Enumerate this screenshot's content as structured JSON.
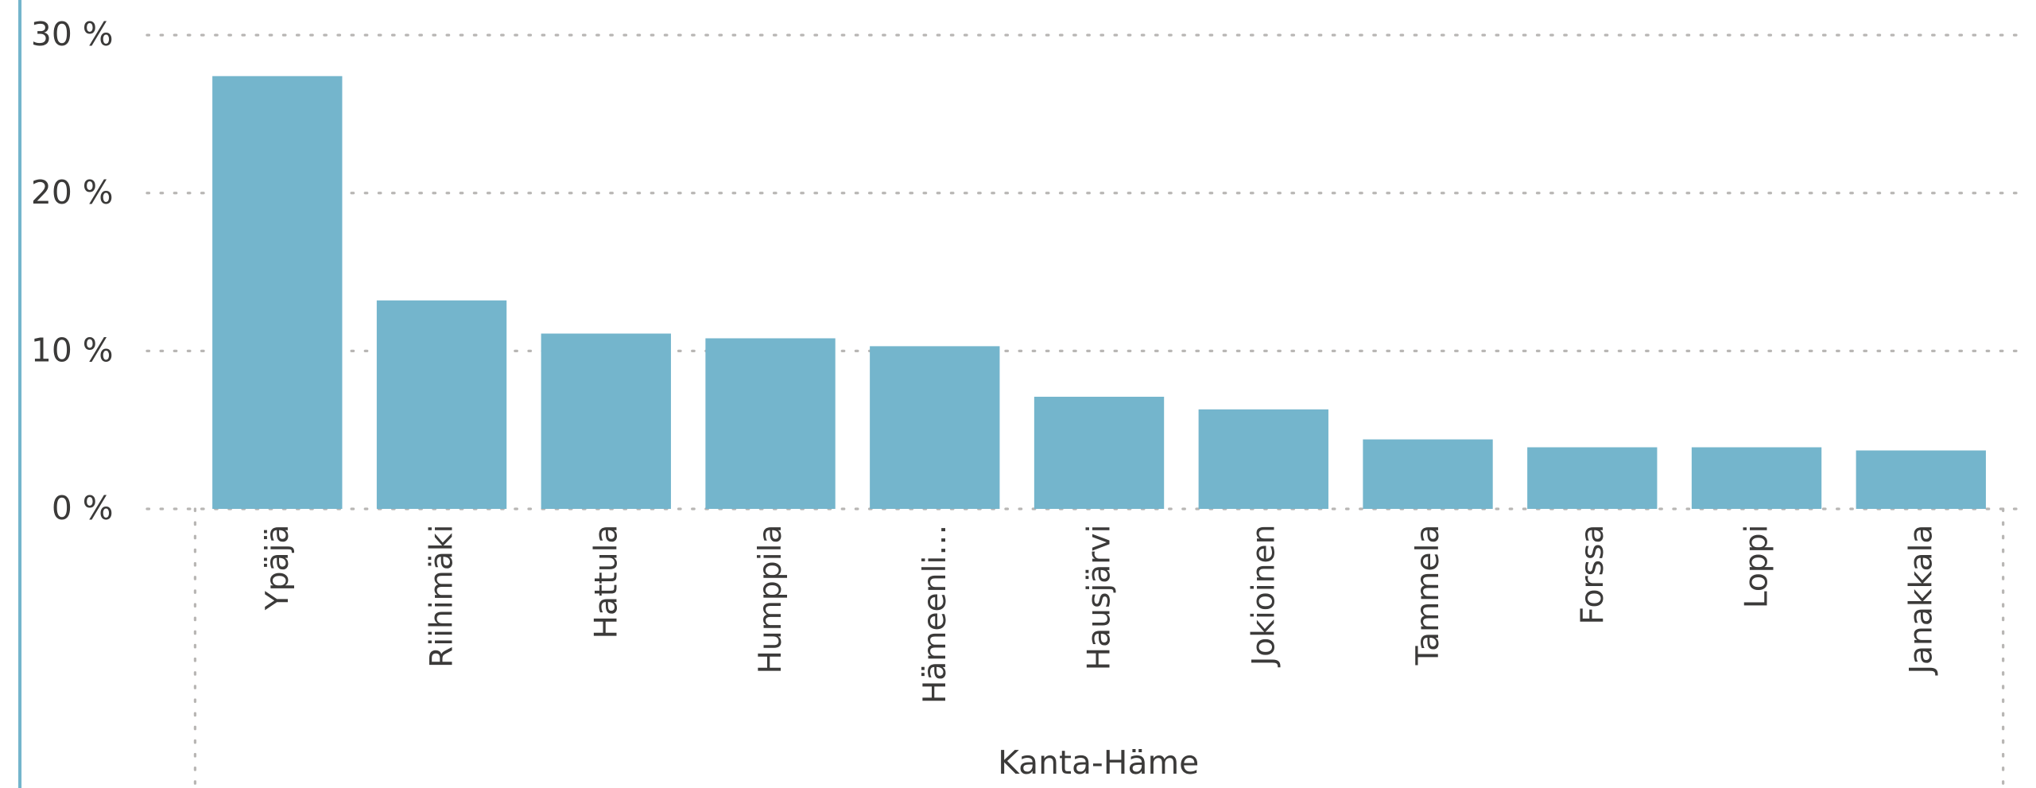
{
  "chart_data": {
    "type": "bar",
    "group_label": "Kanta-Häme",
    "categories": [
      "Ypäjä",
      "Riihimäki",
      "Hattula",
      "Humppila",
      "Hämeenli…",
      "Hausjärvi",
      "Jokioinen",
      "Tammela",
      "Forssa",
      "Loppi",
      "Janakkala"
    ],
    "values": [
      27.4,
      13.2,
      11.1,
      10.8,
      10.3,
      7.1,
      6.3,
      4.4,
      3.9,
      3.9,
      3.7
    ],
    "color": "#74b5cc",
    "ylim": [
      0,
      30
    ],
    "yticks": [
      {
        "value": 0,
        "label": "0 %"
      },
      {
        "value": 10,
        "label": "10 %"
      },
      {
        "value": 20,
        "label": "20 %"
      },
      {
        "value": 30,
        "label": "30 %"
      }
    ],
    "grid": true
  }
}
